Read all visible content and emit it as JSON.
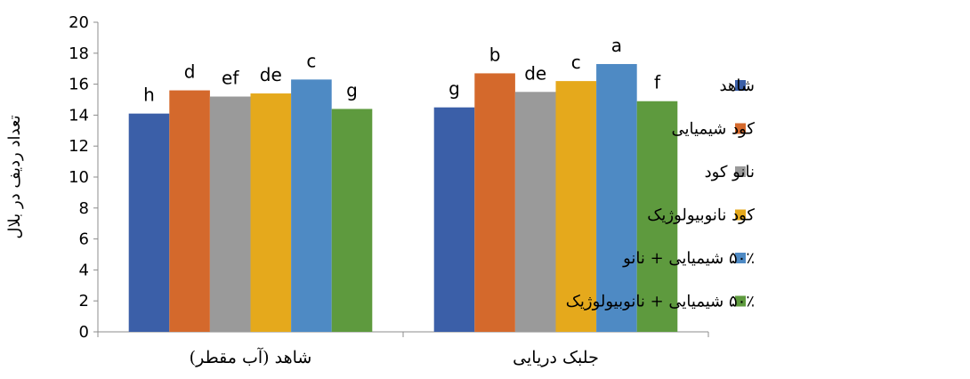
{
  "chart_data": {
    "type": "bar",
    "title": "",
    "xlabel": "",
    "ylabel": "تعداد ردیف در بلال",
    "ylim": [
      0,
      20
    ],
    "yticks": [
      0,
      2,
      4,
      6,
      8,
      10,
      12,
      14,
      16,
      18,
      20
    ],
    "grid": false,
    "legend_position": "right",
    "categories": [
      "شاهد (آب مقطر)",
      "جلبک دریایی"
    ],
    "series": [
      {
        "name": "شاهد",
        "color": "#3b5fa8",
        "values": [
          14.1,
          14.5
        ],
        "labels": [
          "h",
          "g"
        ]
      },
      {
        "name": "کود شیمیایی",
        "color": "#d4692c",
        "values": [
          15.6,
          16.7
        ],
        "labels": [
          "d",
          "b"
        ]
      },
      {
        "name": "نانو کود",
        "color": "#9a9a9a",
        "values": [
          15.2,
          15.5
        ],
        "labels": [
          "ef",
          "de"
        ]
      },
      {
        "name": "کود نانوبیولوژیک",
        "color": "#e5a91c",
        "values": [
          15.4,
          16.2
        ],
        "labels": [
          "de",
          "c"
        ]
      },
      {
        "name": "۵۰٪ شیمیایی + نانو",
        "color": "#4e8ac4",
        "values": [
          16.3,
          17.3
        ],
        "labels": [
          "c",
          "a"
        ]
      },
      {
        "name": "۵۰٪ شیمیایی + نانوبیولوژیک",
        "color": "#5e9a3e",
        "values": [
          14.4,
          14.9
        ],
        "labels": [
          "g",
          "f"
        ]
      }
    ]
  }
}
